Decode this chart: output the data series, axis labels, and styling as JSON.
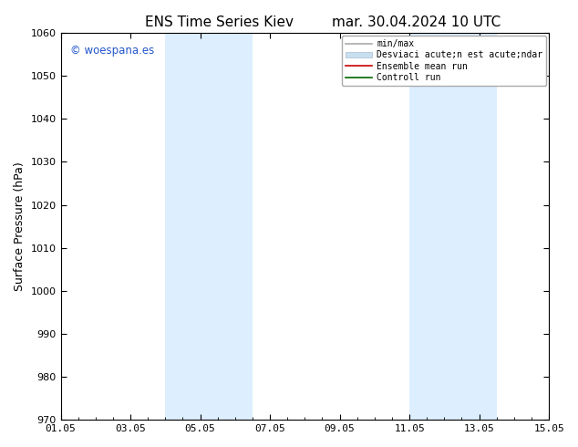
{
  "title_left": "ENS Time Series Kiev",
  "title_right": "mar. 30.04.2024 10 UTC",
  "ylabel": "Surface Pressure (hPa)",
  "ylim": [
    970,
    1060
  ],
  "yticks": [
    970,
    980,
    990,
    1000,
    1010,
    1020,
    1030,
    1040,
    1050,
    1060
  ],
  "xtick_labels": [
    "01.05",
    "03.05",
    "05.05",
    "07.05",
    "09.05",
    "11.05",
    "13.05",
    "15.05"
  ],
  "xtick_positions": [
    0,
    2,
    4,
    6,
    8,
    10,
    12,
    14
  ],
  "xlim": [
    0,
    14
  ],
  "shaded_regions": [
    {
      "x_start": 3.0,
      "x_end": 5.5
    },
    {
      "x_start": 10.0,
      "x_end": 12.5
    }
  ],
  "shade_color": "#ddeeff",
  "watermark_text": "© woespana.es",
  "watermark_color": "#2255cc",
  "bg_color": "#ffffff",
  "spine_color": "#000000",
  "title_fontsize": 11,
  "axis_fontsize": 9,
  "tick_fontsize": 8,
  "legend_fontsize": 7,
  "legend_label_1": "min/max",
  "legend_label_2": "Desviaci acute;n est acute;ndar",
  "legend_label_3": "Ensemble mean run",
  "legend_label_4": "Controll run",
  "legend_color_1": "#aaaaaa",
  "legend_color_2": "#c8dff0",
  "legend_color_3": "#cc0000",
  "legend_color_4": "#006600"
}
